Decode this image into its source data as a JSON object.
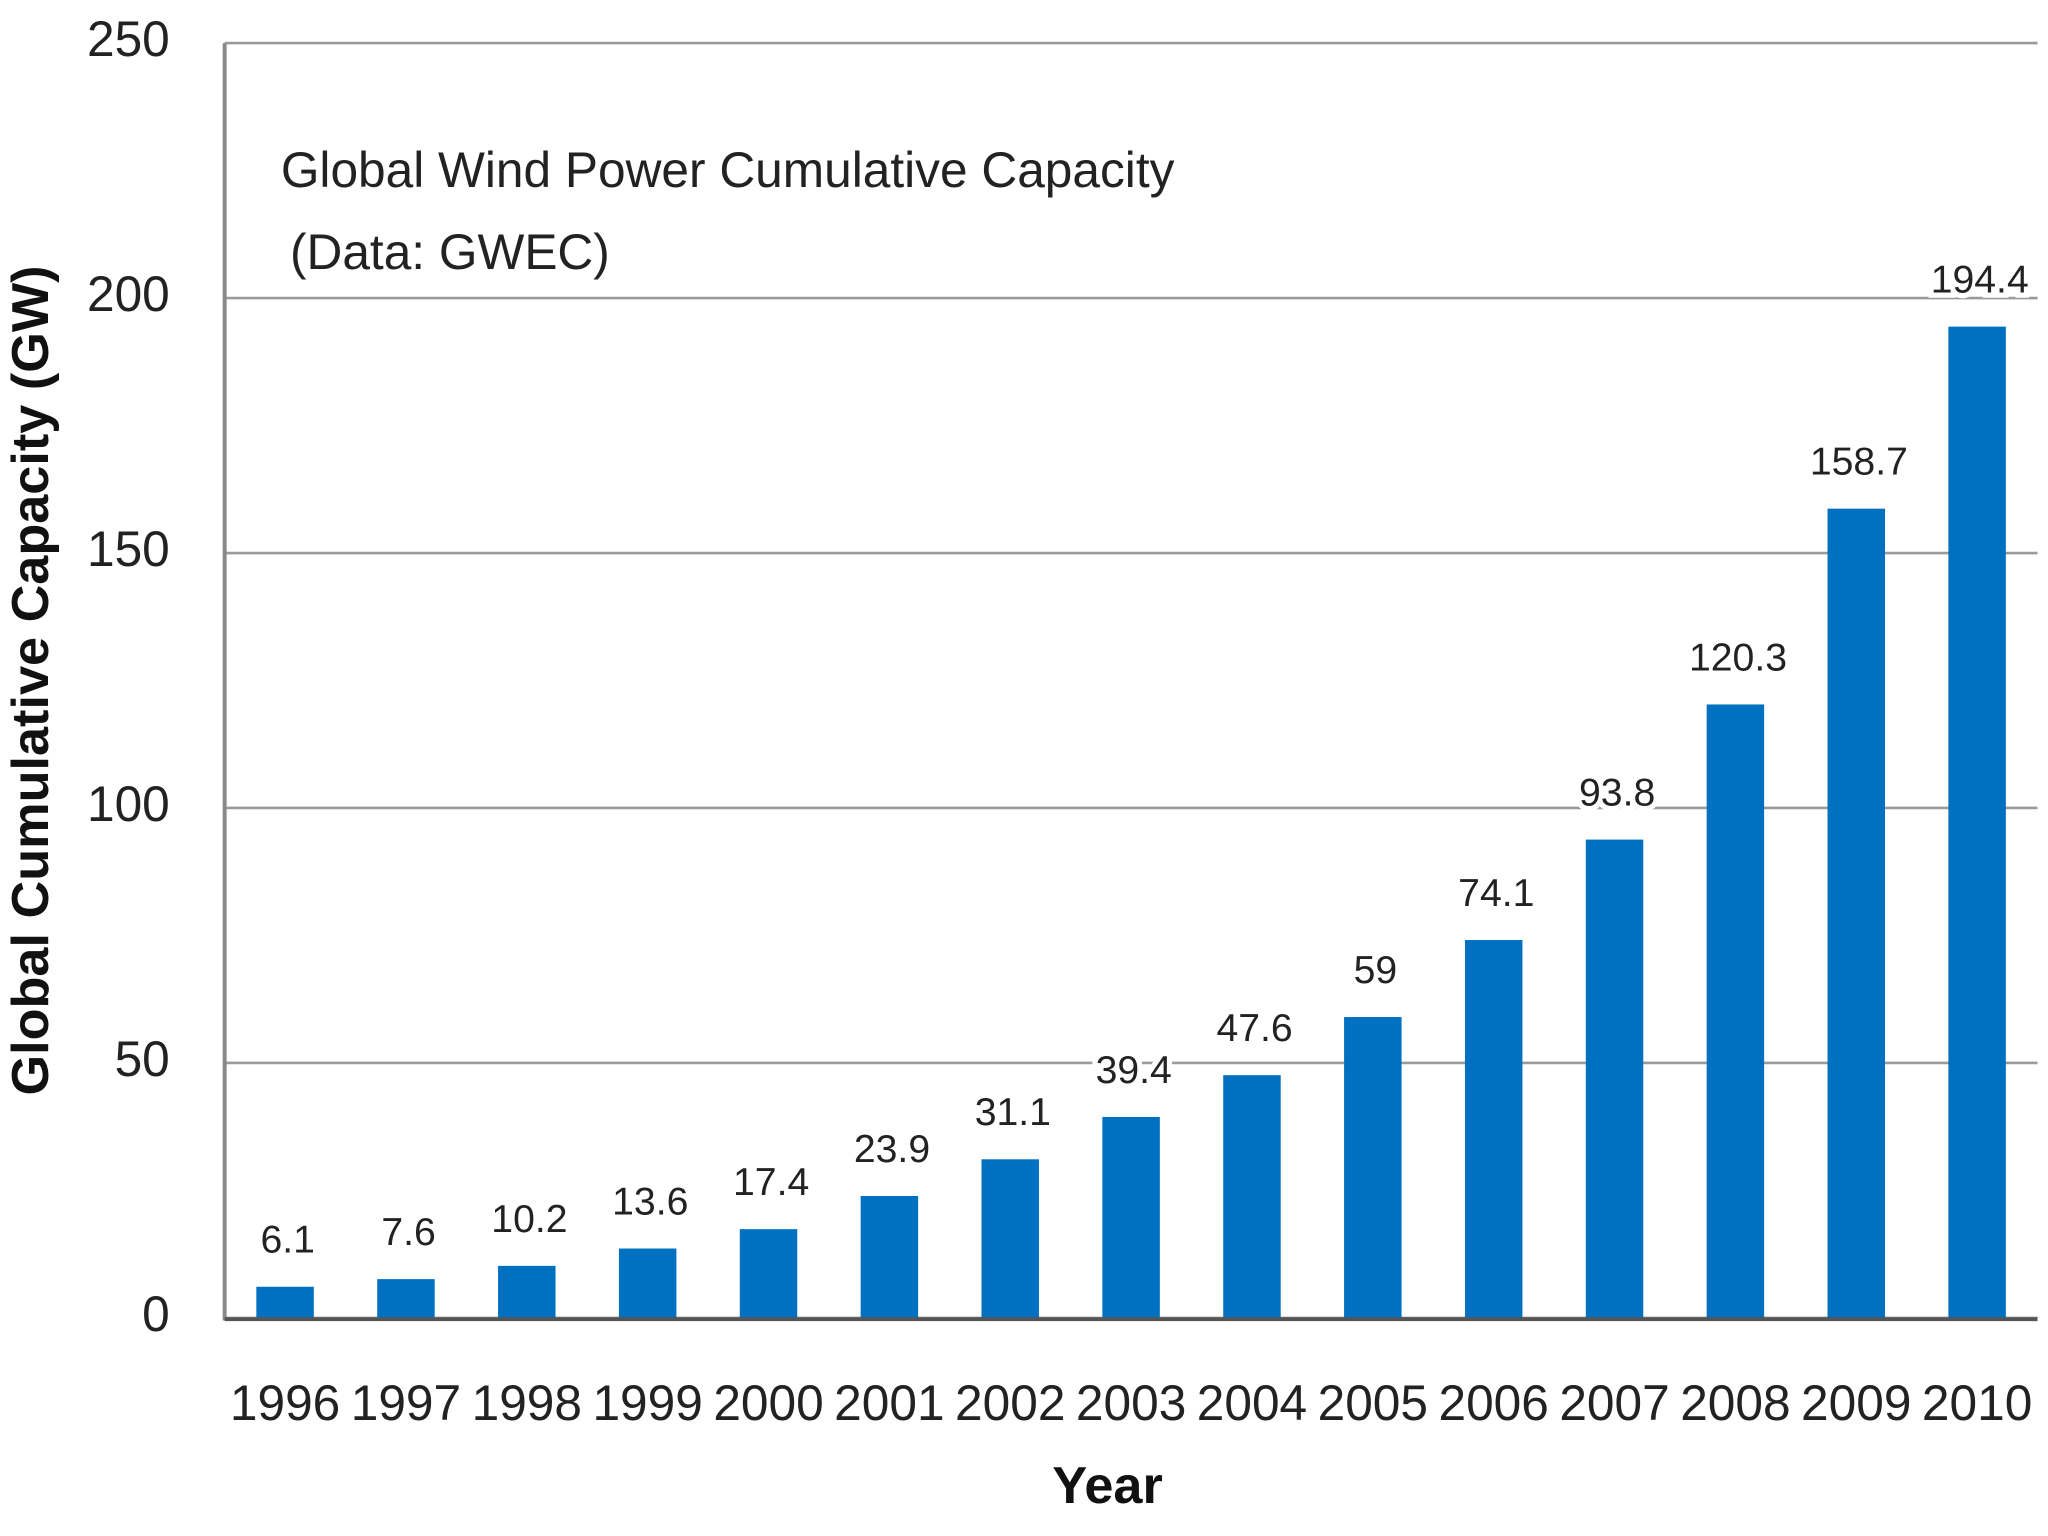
{
  "chart_data": {
    "type": "bar",
    "title": "Global Wind Power Cumulative Capacity",
    "subtitle": "(Data: GWEC)",
    "x_label": "Year",
    "y_label": "Global Cumulative Capacity (GW)",
    "categories": [
      "1996",
      "1997",
      "1998",
      "1999",
      "2000",
      "2001",
      "2002",
      "2003",
      "2004",
      "2005",
      "2006",
      "2007",
      "2008",
      "2009",
      "2010"
    ],
    "values": [
      6.1,
      7.6,
      10.2,
      13.6,
      17.4,
      23.9,
      31.1,
      39.4,
      47.6,
      59,
      74.1,
      93.8,
      120.3,
      158.7,
      194.4
    ],
    "color": "#0070c0",
    "ylim": [
      0,
      250
    ],
    "yticks": [
      0,
      50,
      100,
      150,
      200,
      250
    ],
    "grid": true
  }
}
